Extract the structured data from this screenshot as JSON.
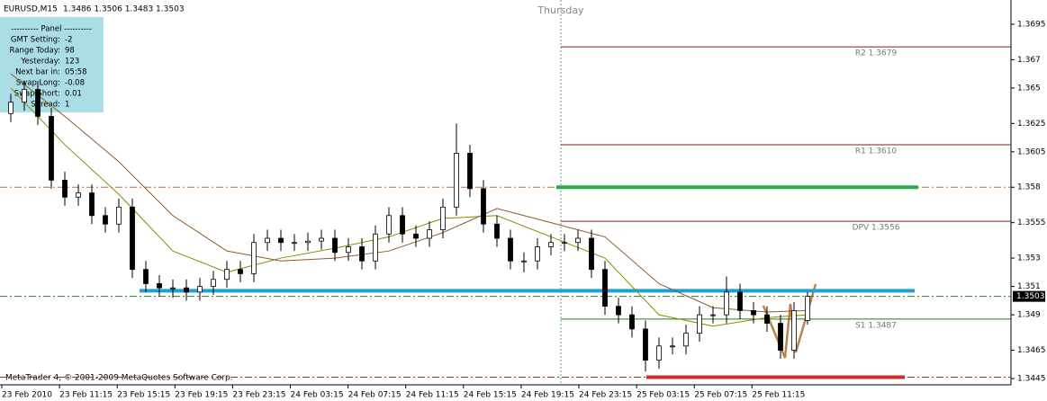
{
  "chart": {
    "type": "candlestick",
    "symbol": "EURUSD,M15",
    "quote": "1.3486 1.3506 1.3483 1.3503",
    "day_label": "Thursday",
    "footer": "MetaTrader 4, © 2001-2009 MetaQuotes Software Corp.",
    "ylim": [
      1.34406,
      1.37121
    ],
    "yticks": [
      1.3695,
      1.367,
      1.365,
      1.3625,
      1.3605,
      1.358,
      1.3555,
      1.353,
      1.351,
      1.349,
      1.3465,
      1.3445
    ],
    "xlabels": [
      "23 Feb 2010",
      "23 Feb 11:15",
      "23 Feb 15:15",
      "23 Feb 19:15",
      "23 Feb 23:15",
      "24 Feb 03:15",
      "24 Feb 07:15",
      "24 Feb 11:15",
      "24 Feb 15:15",
      "24 Feb 19:15",
      "24 Feb 23:15",
      "25 Feb 03:15",
      "25 Feb 07:15",
      "25 Feb 11:15"
    ],
    "current_price": {
      "label": "1.3503",
      "value": 1.3503
    },
    "candles": [
      [
        1.3632,
        1.3646,
        1.3626,
        1.364
      ],
      [
        1.364,
        1.3655,
        1.3634,
        1.3649
      ],
      [
        1.3649,
        1.3655,
        1.3624,
        1.363
      ],
      [
        1.363,
        1.3636,
        1.3579,
        1.3585
      ],
      [
        1.3585,
        1.3591,
        1.3567,
        1.3573
      ],
      [
        1.3573,
        1.3582,
        1.3567,
        1.3576
      ],
      [
        1.3576,
        1.3582,
        1.3554,
        1.356
      ],
      [
        1.356,
        1.3566,
        1.3548,
        1.3554
      ],
      [
        1.3554,
        1.3572,
        1.3548,
        1.3566
      ],
      [
        1.3566,
        1.3572,
        1.3516,
        1.3522
      ],
      [
        1.3522,
        1.3528,
        1.3506,
        1.3512
      ],
      [
        1.3512,
        1.3518,
        1.3503,
        1.3509
      ],
      [
        1.3509,
        1.3515,
        1.3502,
        1.3509
      ],
      [
        1.3509,
        1.3515,
        1.35,
        1.3506
      ],
      [
        1.3506,
        1.3516,
        1.35,
        1.351
      ],
      [
        1.351,
        1.3521,
        1.3504,
        1.3515
      ],
      [
        1.3515,
        1.3528,
        1.3509,
        1.3522
      ],
      [
        1.3522,
        1.3528,
        1.3513,
        1.3519
      ],
      [
        1.3519,
        1.3547,
        1.3513,
        1.3541
      ],
      [
        1.3541,
        1.355,
        1.3535,
        1.3544
      ],
      [
        1.3544,
        1.355,
        1.3535,
        1.3541
      ],
      [
        1.3541,
        1.3547,
        1.3535,
        1.3541
      ],
      [
        1.3541,
        1.3548,
        1.3535,
        1.3542
      ],
      [
        1.3542,
        1.355,
        1.3536,
        1.3544
      ],
      [
        1.3544,
        1.355,
        1.3528,
        1.3534
      ],
      [
        1.3534,
        1.3544,
        1.3528,
        1.3538
      ],
      [
        1.3538,
        1.3544,
        1.3522,
        1.3528
      ],
      [
        1.3528,
        1.3553,
        1.3522,
        1.3547
      ],
      [
        1.3547,
        1.3566,
        1.3541,
        1.356
      ],
      [
        1.356,
        1.3566,
        1.3541,
        1.3547
      ],
      [
        1.3547,
        1.3553,
        1.3538,
        1.3544
      ],
      [
        1.3544,
        1.3556,
        1.3538,
        1.355
      ],
      [
        1.355,
        1.3572,
        1.3544,
        1.3566
      ],
      [
        1.3566,
        1.3625,
        1.356,
        1.3604
      ],
      [
        1.3604,
        1.361,
        1.3573,
        1.3579
      ],
      [
        1.3579,
        1.3585,
        1.3548,
        1.3554
      ],
      [
        1.3554,
        1.356,
        1.3538,
        1.3544
      ],
      [
        1.3544,
        1.355,
        1.3522,
        1.3528
      ],
      [
        1.3528,
        1.3534,
        1.352,
        1.3528
      ],
      [
        1.3528,
        1.3544,
        1.3522,
        1.3538
      ],
      [
        1.3538,
        1.3547,
        1.3532,
        1.3541
      ],
      [
        1.3541,
        1.3547,
        1.3535,
        1.3541
      ],
      [
        1.3541,
        1.355,
        1.3535,
        1.3544
      ],
      [
        1.3544,
        1.355,
        1.3516,
        1.3522
      ],
      [
        1.3522,
        1.3528,
        1.349,
        1.3496
      ],
      [
        1.3496,
        1.3502,
        1.3484,
        1.349
      ],
      [
        1.349,
        1.3496,
        1.3474,
        1.348
      ],
      [
        1.348,
        1.3486,
        1.345,
        1.3458
      ],
      [
        1.3458,
        1.3474,
        1.3452,
        1.3468
      ],
      [
        1.3468,
        1.3474,
        1.3462,
        1.3468
      ],
      [
        1.3468,
        1.3483,
        1.3462,
        1.3477
      ],
      [
        1.3477,
        1.3496,
        1.3471,
        1.349
      ],
      [
        1.349,
        1.3496,
        1.3484,
        1.349
      ],
      [
        1.349,
        1.3517,
        1.3484,
        1.3506
      ],
      [
        1.3506,
        1.3512,
        1.3487,
        1.3493
      ],
      [
        1.3493,
        1.3499,
        1.3484,
        1.349
      ],
      [
        1.349,
        1.3496,
        1.3478,
        1.3484
      ],
      [
        1.3484,
        1.349,
        1.3459,
        1.3465
      ],
      [
        1.3465,
        1.3499,
        1.3459,
        1.3493
      ],
      [
        1.3486,
        1.3506,
        1.3483,
        1.3503
      ]
    ],
    "moving_averages": [
      {
        "color": "#8b8b00",
        "x": [
          0,
          4,
          8,
          12,
          16,
          20,
          24,
          28,
          32,
          36,
          40,
          44,
          48,
          52,
          56,
          59
        ],
        "values": [
          1.365,
          1.361,
          1.3575,
          1.3535,
          1.352,
          1.353,
          1.3537,
          1.3545,
          1.3558,
          1.356,
          1.3545,
          1.353,
          1.349,
          1.3482,
          1.3488,
          1.349
        ]
      },
      {
        "color": "#8b5a2b",
        "x": [
          0,
          4,
          8,
          12,
          16,
          20,
          24,
          28,
          32,
          36,
          40,
          44,
          48,
          52,
          56,
          59
        ],
        "values": [
          1.366,
          1.363,
          1.3598,
          1.356,
          1.3535,
          1.3528,
          1.353,
          1.3535,
          1.3548,
          1.3565,
          1.3555,
          1.3545,
          1.3512,
          1.3495,
          1.3492,
          1.3493
        ]
      }
    ],
    "pivots": [
      {
        "label": "R2 1.3679",
        "value": 1.3679,
        "color": "#8b1a1a"
      },
      {
        "label": "R1 1.3610",
        "value": 1.361,
        "color": "#8b1a1a"
      },
      {
        "label": "DPV 1.3556",
        "value": 1.3556,
        "color": "#8b1a1a"
      },
      {
        "label": "S1 1.3487",
        "value": 1.3487,
        "color": "#1f7a1f"
      }
    ],
    "levels": [
      {
        "value": 1.358,
        "color": "#2eaa4a"
      },
      {
        "value": 1.3507,
        "color": "#1aa3d9"
      },
      {
        "value": 1.3446,
        "color": "#d62a2a"
      }
    ],
    "dash_lines": [
      {
        "value": 1.358,
        "color": "#c0703a"
      },
      {
        "value": 1.3503,
        "color": "#2a7a2a"
      },
      {
        "value": 1.3446,
        "color": "#8b3a1a"
      }
    ],
    "panel": {
      "title": "---------- Panel ----------",
      "rows": [
        [
          "GMT Setting:",
          "-2"
        ],
        [
          "Range Today:",
          "98"
        ],
        [
          "Yesterday:",
          "123"
        ],
        [
          "Next bar in:",
          "05:58"
        ],
        [
          "Swap Long:",
          "-0.08"
        ],
        [
          "Swap Short:",
          "0.01"
        ],
        [
          "Spread:",
          "1"
        ]
      ]
    }
  }
}
